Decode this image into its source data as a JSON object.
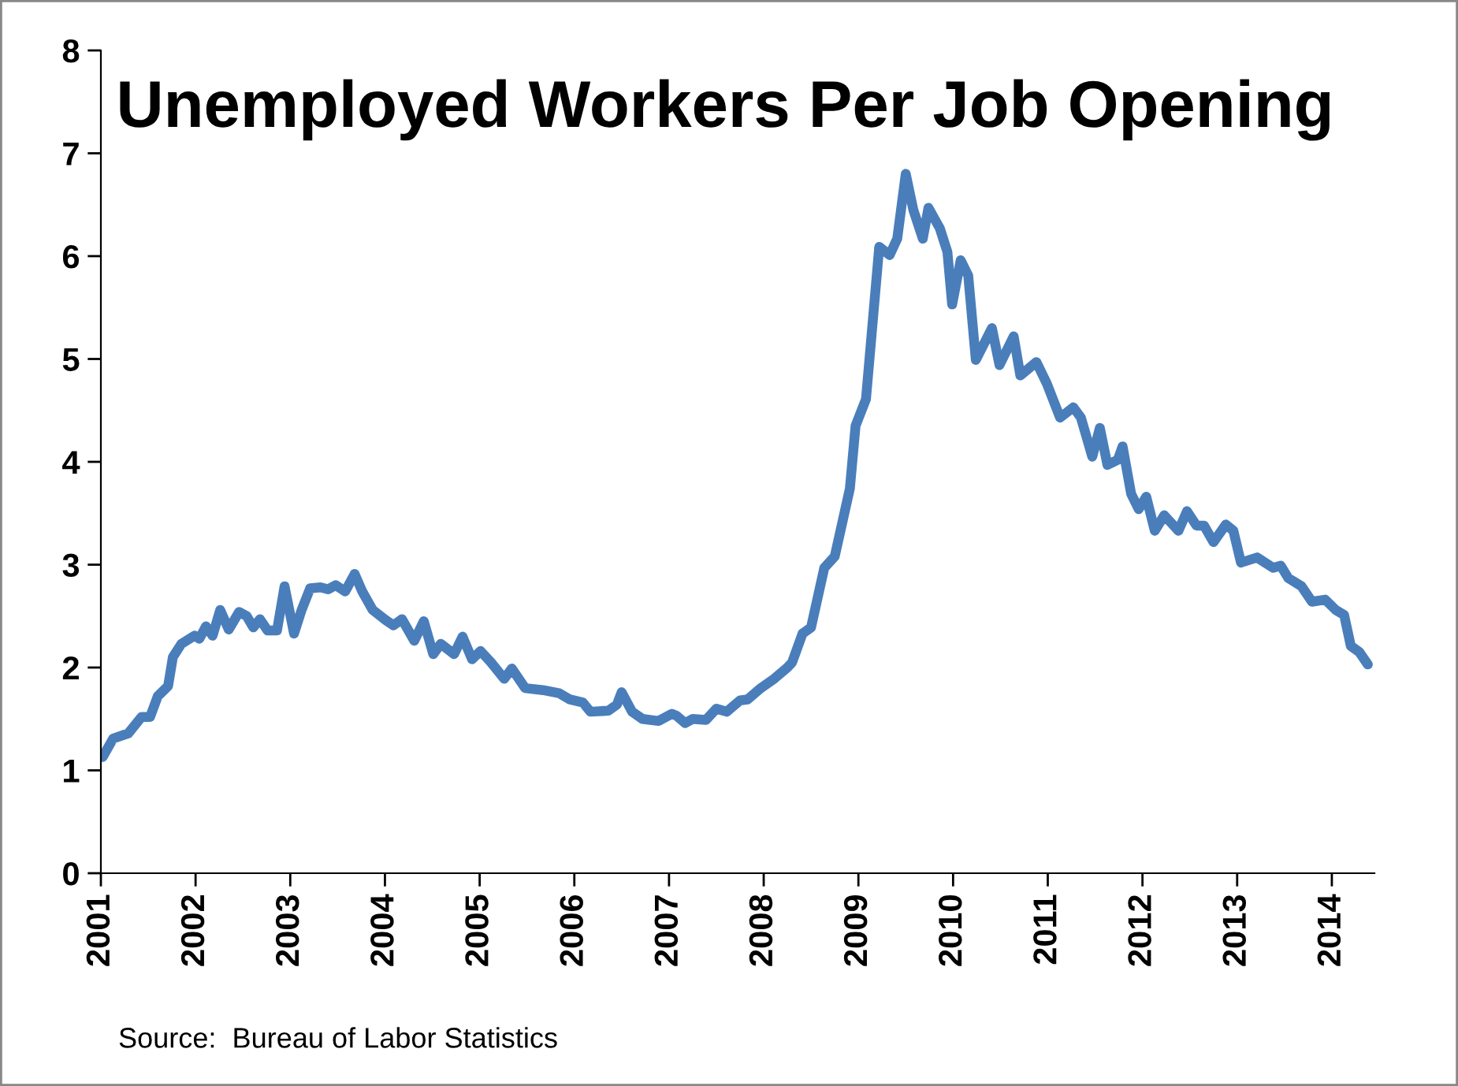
{
  "chart_data": {
    "type": "line",
    "title": "Unemployed Workers Per Job Opening",
    "annotations": [
      "Source:  Bureau of Labor Statistics"
    ],
    "x": [
      2001.02,
      2001.13,
      2001.29,
      2001.43,
      2001.52,
      2001.6,
      2001.71,
      2001.76,
      2001.85,
      2001.99,
      2002.04,
      2002.11,
      2002.18,
      2002.26,
      2002.35,
      2002.46,
      2002.54,
      2002.61,
      2002.68,
      2002.76,
      2002.86,
      2002.94,
      2003.04,
      2003.12,
      2003.21,
      2003.32,
      2003.4,
      2003.48,
      2003.58,
      2003.68,
      2003.76,
      2003.87,
      2004.01,
      2004.09,
      2004.18,
      2004.31,
      2004.41,
      2004.51,
      2004.59,
      2004.73,
      2004.82,
      2004.92,
      2005.01,
      2005.12,
      2005.26,
      2005.34,
      2005.48,
      2005.67,
      2005.84,
      2005.95,
      2006.09,
      2006.17,
      2006.36,
      2006.45,
      2006.5,
      2006.61,
      2006.72,
      2006.89,
      2007.03,
      2007.08,
      2007.17,
      2007.25,
      2007.39,
      2007.5,
      2007.61,
      2007.75,
      2007.83,
      2007.97,
      2008.11,
      2008.25,
      2008.3,
      2008.41,
      2008.5,
      2008.64,
      2008.75,
      2008.91,
      2008.97,
      2009.08,
      2009.22,
      2009.33,
      2009.41,
      2009.5,
      2009.58,
      2009.68,
      2009.74,
      2009.86,
      2009.94,
      2009.99,
      2010.08,
      2010.16,
      2010.24,
      2010.41,
      2010.49,
      2010.64,
      2010.71,
      2010.88,
      2010.99,
      2011.13,
      2011.27,
      2011.35,
      2011.47,
      2011.55,
      2011.63,
      2011.74,
      2011.79,
      2011.88,
      2011.96,
      2012.04,
      2012.13,
      2012.23,
      2012.38,
      2012.47,
      2012.57,
      2012.65,
      2012.75,
      2012.88,
      2012.96,
      2013.04,
      2013.21,
      2013.38,
      2013.46,
      2013.54,
      2013.68,
      2013.79,
      2013.93,
      2014.04,
      2014.13,
      2014.2,
      2014.29,
      2014.38
    ],
    "series": [
      {
        "color": "#4a7ebb",
        "values": [
          1.13,
          1.31,
          1.36,
          1.52,
          1.52,
          1.72,
          1.82,
          2.1,
          2.23,
          2.31,
          2.28,
          2.4,
          2.31,
          2.56,
          2.37,
          2.54,
          2.5,
          2.39,
          2.47,
          2.36,
          2.36,
          2.79,
          2.33,
          2.56,
          2.77,
          2.78,
          2.76,
          2.8,
          2.74,
          2.91,
          2.74,
          2.56,
          2.46,
          2.41,
          2.47,
          2.26,
          2.45,
          2.13,
          2.23,
          2.13,
          2.3,
          2.08,
          2.16,
          2.05,
          1.89,
          1.99,
          1.8,
          1.78,
          1.75,
          1.69,
          1.66,
          1.57,
          1.58,
          1.64,
          1.76,
          1.57,
          1.5,
          1.48,
          1.55,
          1.53,
          1.46,
          1.5,
          1.49,
          1.6,
          1.57,
          1.68,
          1.69,
          1.8,
          1.89,
          2.0,
          2.05,
          2.33,
          2.39,
          2.97,
          3.08,
          3.74,
          4.35,
          4.61,
          6.09,
          6.01,
          6.17,
          6.8,
          6.45,
          6.17,
          6.47,
          6.27,
          6.04,
          5.53,
          5.96,
          5.81,
          4.99,
          5.3,
          4.94,
          5.22,
          4.84,
          4.97,
          4.76,
          4.43,
          4.53,
          4.43,
          4.05,
          4.33,
          3.97,
          4.02,
          4.15,
          3.69,
          3.54,
          3.66,
          3.33,
          3.48,
          3.33,
          3.52,
          3.38,
          3.38,
          3.22,
          3.39,
          3.33,
          3.02,
          3.07,
          2.97,
          2.99,
          2.87,
          2.79,
          2.64,
          2.66,
          2.56,
          2.51,
          2.21,
          2.15,
          2.03
        ]
      }
    ],
    "xlim": [
      2001,
      2014.45
    ],
    "xticks": [
      2001,
      2002,
      2003,
      2004,
      2005,
      2006,
      2007,
      2008,
      2009,
      2010,
      2011,
      2012,
      2013,
      2014
    ],
    "ylim": [
      0,
      8
    ],
    "yticks": [
      0,
      1,
      2,
      3,
      4,
      5,
      6,
      7,
      8
    ],
    "grid": false,
    "legend": false,
    "marker": "none",
    "line_style": "solid"
  }
}
